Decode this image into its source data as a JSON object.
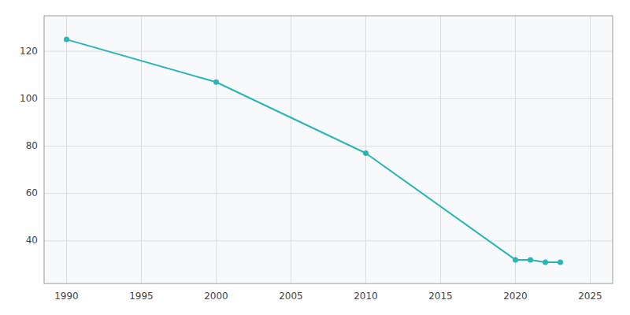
{
  "chart_data": {
    "type": "line",
    "x": [
      1990,
      2000,
      2010,
      2020,
      2021,
      2022,
      2023
    ],
    "values": [
      125,
      107,
      77,
      32,
      32,
      31,
      31
    ],
    "color": "#2ab5b5",
    "marker": "circle",
    "xlim": [
      1988.5,
      2026.5
    ],
    "ylim": [
      22,
      135
    ],
    "xticks": [
      1990,
      1995,
      2000,
      2005,
      2010,
      2015,
      2020,
      2025
    ],
    "yticks": [
      40,
      60,
      80,
      100,
      120
    ],
    "grid": true
  }
}
